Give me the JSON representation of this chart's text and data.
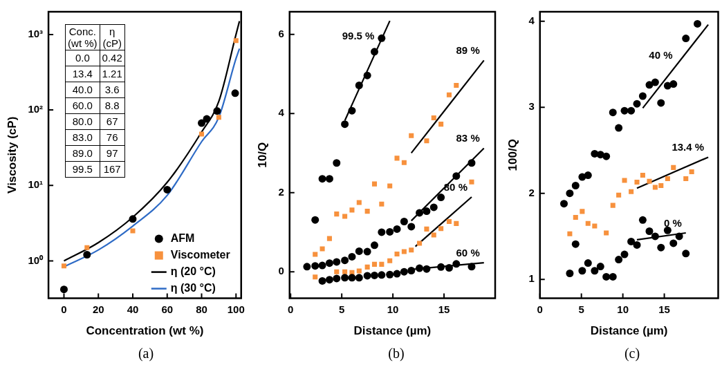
{
  "chart_data": [
    {
      "type": "scatter",
      "title": "(a)",
      "xlabel": "Concentration (wt %)",
      "ylabel": "Viscosity (cP)",
      "log": "y",
      "legend": "bottom right",
      "xlim": [
        -9,
        103
      ],
      "ylim": [
        0.32,
        2000
      ],
      "xticks": [
        0,
        20,
        40,
        60,
        80,
        100
      ],
      "yticks": [
        {
          "value": 1,
          "label": "10⁰"
        },
        {
          "value": 10,
          "label": "10¹"
        },
        {
          "value": 100,
          "label": "10²"
        },
        {
          "value": 1000,
          "label": "10³"
        }
      ],
      "annotations": [
        "Conc. (wt %)",
        "η (cP)",
        "0.0",
        "0.42",
        "13.4",
        "1.21",
        "40.0",
        "3.6",
        "60.0",
        "8.8",
        "80.0",
        "67",
        "83.0",
        "76",
        "89.0",
        "97",
        "99.5",
        "167"
      ],
      "series": [
        {
          "name": "AFM",
          "type": "scatter",
          "marker": "circle",
          "color": "#000000",
          "x": [
            0,
            13.4,
            40,
            60,
            80,
            83,
            89,
            99.5
          ],
          "values": [
            0.42,
            1.21,
            3.6,
            8.8,
            67,
            76,
            97,
            167
          ]
        },
        {
          "name": "Viscometer",
          "type": "scatter",
          "marker": "square",
          "color": "#f7913d",
          "x": [
            0,
            13.4,
            40,
            60,
            80,
            90,
            100
          ],
          "values": [
            0.86,
            1.5,
            2.5,
            null,
            48,
            80,
            830
          ]
        },
        {
          "name": "η (20 °C)",
          "type": "line",
          "color": "#000000",
          "x": [
            0,
            20,
            40,
            60,
            80,
            90,
            100,
            102
          ],
          "values": [
            1.0,
            1.75,
            3.8,
            11,
            51,
            130,
            1000,
            1500
          ]
        },
        {
          "name": "η (30 °C)",
          "type": "line",
          "color": "#2e6bc6",
          "x": [
            0,
            20,
            40,
            60,
            80,
            90,
            100,
            102
          ],
          "values": [
            0.84,
            1.4,
            2.9,
            7.4,
            38,
            80,
            480,
            650
          ]
        }
      ]
    },
    {
      "type": "scatter",
      "title": "(b)",
      "xlabel": "Distance (µm)",
      "ylabel": "10/Q",
      "xlim": [
        -0.1,
        20
      ],
      "ylim": [
        -0.67,
        6.57
      ],
      "xticks": [
        0,
        5,
        10,
        15
      ],
      "yticks": [
        0,
        2,
        4,
        6
      ],
      "annotations": [
        {
          "text": "99.5 %",
          "x": 8.6,
          "y": 5.71
        },
        {
          "text": "89 %",
          "x": 18.9,
          "y": 5.34
        },
        {
          "text": "83 %",
          "x": 18.9,
          "y": 3.12
        },
        {
          "text": "80 %",
          "x": 17.7,
          "y": 1.89
        },
        {
          "text": "60 %",
          "x": 18.9,
          "y": 0.23
        }
      ],
      "series": [
        {
          "type": "scatter",
          "marker": "circle",
          "color": "#000000",
          "x": [
            2.4,
            3.1,
            3.8,
            4.5,
            5.3,
            6.0,
            6.7,
            7.5,
            8.2,
            8.9
          ],
          "values": [
            1.31,
            2.35,
            2.35,
            2.75,
            3.73,
            4.07,
            4.71,
            4.96,
            5.56,
            5.9
          ]
        },
        {
          "type": "scatter",
          "marker": "circle",
          "color": "#000000",
          "x": [
            1.6,
            2.4,
            3.1,
            3.8,
            4.5,
            5.3,
            6.0,
            6.7,
            7.5,
            8.2,
            8.9,
            9.7,
            10.4,
            11.1,
            11.8,
            12.6,
            13.3,
            14.0,
            14.7,
            16.2,
            17.7
          ],
          "values": [
            0.13,
            0.15,
            0.16,
            0.22,
            0.25,
            0.29,
            0.38,
            0.52,
            0.51,
            0.67,
            1.0,
            1.01,
            1.08,
            1.27,
            1.14,
            1.49,
            1.53,
            1.63,
            1.88,
            2.42,
            2.75
          ]
        },
        {
          "type": "scatter",
          "marker": "circle",
          "color": "#000000",
          "x": [
            3.1,
            3.8,
            4.5,
            5.3,
            6.0,
            6.7,
            7.5,
            8.2,
            8.9,
            9.7,
            10.4,
            11.1,
            11.8,
            12.6,
            13.3,
            14.7,
            15.5,
            16.2,
            17.7
          ],
          "values": [
            -0.23,
            -0.2,
            -0.17,
            -0.15,
            -0.15,
            -0.15,
            -0.1,
            -0.09,
            -0.08,
            -0.07,
            -0.05,
            0,
            0.03,
            0.09,
            0.07,
            0.12,
            0.1,
            0.2,
            0.13
          ]
        },
        {
          "type": "scatter",
          "marker": "square",
          "color": "#f7913d",
          "x": [
            2.4,
            3.1,
            3.8,
            4.5,
            5.3,
            6.0,
            6.7,
            7.5,
            8.2,
            8.9,
            9.7,
            10.4,
            11.1,
            11.8,
            13.3,
            14.0,
            14.7,
            15.5,
            16.2,
            17.7
          ],
          "values": [
            0.44,
            0.58,
            0.84,
            1.46,
            1.4,
            1.56,
            1.75,
            1.53,
            2.22,
            1.71,
            2.17,
            2.87,
            2.76,
            3.44,
            3.31,
            3.89,
            3.73,
            4.47,
            4.71,
            2.27
          ]
        },
        {
          "type": "scatter",
          "marker": "square",
          "color": "#f7913d",
          "x": [
            2.4,
            4.5,
            5.3,
            6.0,
            6.7,
            7.5,
            8.2,
            8.9,
            9.7,
            10.4,
            11.1,
            11.8,
            12.6,
            13.3,
            14.0,
            14.7,
            15.5,
            16.2
          ],
          "values": [
            -0.13,
            0,
            0,
            -0.02,
            0.02,
            0.12,
            0.19,
            0.19,
            0.28,
            0.45,
            0.51,
            0.55,
            0.72,
            1.08,
            0.93,
            1.09,
            1.27,
            1.22
          ]
        },
        {
          "type": "line",
          "color": "#000000",
          "x": [
            5.3,
            9.7
          ],
          "values": [
            3.82,
            6.34
          ]
        },
        {
          "type": "line",
          "color": "#000000",
          "x": [
            11.8,
            18.9
          ],
          "values": [
            3.0,
            5.34
          ]
        },
        {
          "type": "line",
          "color": "#000000",
          "x": [
            11.8,
            18.9
          ],
          "values": [
            1.29,
            3.12
          ]
        },
        {
          "type": "line",
          "color": "#000000",
          "x": [
            12.2,
            17.7
          ],
          "values": [
            0.64,
            1.89
          ]
        },
        {
          "type": "line",
          "color": "#000000",
          "x": [
            11.8,
            18.9
          ],
          "values": [
            0.06,
            0.23
          ]
        }
      ]
    },
    {
      "type": "scatter",
      "title": "(c)",
      "xlabel": "Distance (µm)",
      "ylabel": "100/Q",
      "xlim": [
        0,
        21.5
      ],
      "ylim": [
        0.78,
        4.11
      ],
      "xticks": [
        0,
        5,
        10,
        15
      ],
      "yticks": [
        1,
        2,
        3,
        4
      ],
      "annotations": [
        {
          "text": "40 %",
          "x": 16.5,
          "y": 3.49
        },
        {
          "text": "13.4 %",
          "x": 20.3,
          "y": 2.42
        },
        {
          "text": "0 %",
          "x": 17.6,
          "y": 1.54
        }
      ],
      "series": [
        {
          "type": "scatter",
          "marker": "circle",
          "color": "#000000",
          "x": [
            2.9,
            3.6,
            4.3,
            5.1,
            5.8,
            6.6,
            7.3,
            8.0,
            8.8,
            9.5,
            10.2,
            11.0,
            11.7,
            12.4,
            13.2,
            13.9,
            14.6,
            15.4,
            16.1,
            17.6,
            19.0
          ],
          "values": [
            1.88,
            2.0,
            2.09,
            2.19,
            2.21,
            2.46,
            2.45,
            2.43,
            2.94,
            2.76,
            2.96,
            2.96,
            3.04,
            3.13,
            3.26,
            3.29,
            3.05,
            3.25,
            3.27,
            3.8,
            3.97
          ]
        },
        {
          "type": "scatter",
          "marker": "square",
          "color": "#f7913d",
          "x": [
            3.6,
            4.3,
            5.1,
            5.8,
            6.6,
            8.0,
            8.8,
            9.5,
            10.2,
            11.0,
            11.7,
            12.4,
            13.2,
            13.9,
            14.6,
            15.4,
            16.1,
            17.6,
            18.3
          ],
          "values": [
            1.53,
            1.72,
            1.79,
            1.65,
            1.62,
            1.54,
            1.86,
            1.98,
            2.15,
            2.02,
            2.13,
            2.21,
            2.14,
            2.07,
            2.09,
            2.17,
            2.3,
            2.17,
            2.25
          ]
        },
        {
          "type": "scatter",
          "marker": "circle",
          "color": "#000000",
          "x": [
            3.6,
            4.3,
            5.1,
            5.8,
            6.6,
            7.3,
            8.0,
            8.8,
            9.5,
            10.2,
            11.0,
            11.7,
            12.4,
            13.2,
            13.9,
            14.6,
            15.4,
            16.1,
            16.8,
            17.6
          ],
          "values": [
            1.07,
            1.41,
            1.1,
            1.19,
            1.1,
            1.15,
            1.03,
            1.03,
            1.23,
            1.29,
            1.44,
            1.4,
            1.69,
            1.56,
            1.5,
            1.37,
            1.57,
            1.42,
            1.5,
            1.3
          ]
        },
        {
          "type": "line",
          "color": "#000000",
          "x": [
            12.4,
            20.3
          ],
          "values": [
            2.99,
            3.96
          ]
        },
        {
          "type": "line",
          "color": "#000000",
          "x": [
            11.7,
            20.3
          ],
          "values": [
            2.06,
            2.42
          ]
        },
        {
          "type": "line",
          "color": "#000000",
          "x": [
            11.7,
            17.6
          ],
          "values": [
            1.46,
            1.54
          ]
        }
      ]
    }
  ]
}
